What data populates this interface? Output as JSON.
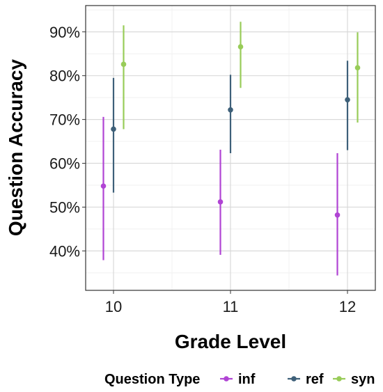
{
  "chart_data": {
    "type": "scatter",
    "subtype": "point-range",
    "xlabel": "Grade Level",
    "ylabel": "Question Accuracy",
    "categories": [
      "10",
      "11",
      "12"
    ],
    "ylim": [
      0.31,
      0.96
    ],
    "yticks": [
      0.4,
      0.5,
      0.6,
      0.7,
      0.8,
      0.9
    ],
    "ytick_labels": [
      "40%",
      "50%",
      "60%",
      "70%",
      "80%",
      "90%"
    ],
    "grid": true,
    "legend": {
      "title": "Question Type",
      "position": "bottom",
      "entries": [
        "inf",
        "ref",
        "syn"
      ]
    },
    "series": [
      {
        "name": "inf",
        "color": "#b044d4",
        "values": [
          0.548,
          0.512,
          0.482
        ],
        "lower": [
          0.379,
          0.391,
          0.344
        ],
        "upper": [
          0.706,
          0.631,
          0.623
        ]
      },
      {
        "name": "ref",
        "color": "#3e6079",
        "values": [
          0.678,
          0.722,
          0.745
        ],
        "lower": [
          0.533,
          0.623,
          0.63
        ],
        "upper": [
          0.795,
          0.802,
          0.834
        ]
      },
      {
        "name": "syn",
        "color": "#98cc58",
        "values": [
          0.826,
          0.866,
          0.818
        ],
        "lower": [
          0.678,
          0.772,
          0.693
        ],
        "upper": [
          0.915,
          0.923,
          0.899
        ]
      }
    ]
  }
}
